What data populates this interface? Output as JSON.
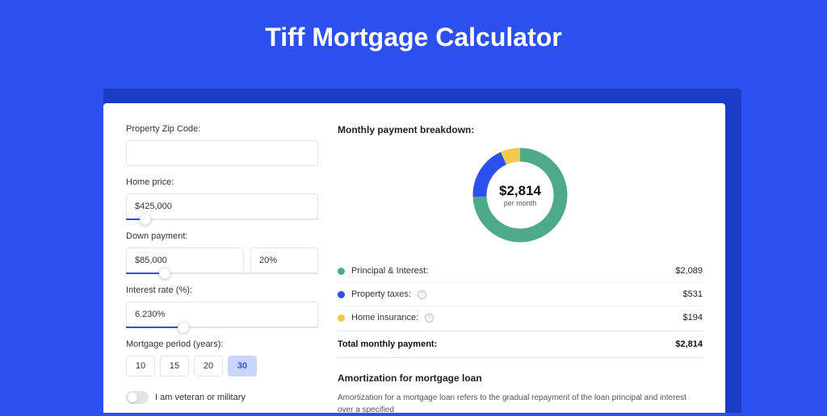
{
  "page": {
    "title": "Tiff Mortgage Calculator",
    "bg_color": "#2b50ed",
    "card_bg": "#ffffff",
    "shadow_color": "#1a3cc7"
  },
  "form": {
    "zip": {
      "label": "Property Zip Code:",
      "value": ""
    },
    "home_price": {
      "label": "Home price:",
      "value": "$425,000",
      "slider_pct": 10
    },
    "down_payment": {
      "label": "Down payment:",
      "amount": "$85,000",
      "percent": "20%",
      "slider_pct": 20
    },
    "interest": {
      "label": "Interest rate (%):",
      "value": "6.230%",
      "slider_pct": 30
    },
    "period": {
      "label": "Mortgage period (years):",
      "options": [
        "10",
        "15",
        "20",
        "30"
      ],
      "selected": "30"
    },
    "veteran": {
      "label": "I am veteran or military",
      "checked": false
    }
  },
  "breakdown": {
    "title": "Monthly payment breakdown:",
    "donut": {
      "amount": "$2,814",
      "sub": "per month",
      "segments": [
        {
          "key": "pi",
          "color": "#4faa88",
          "value": 2089
        },
        {
          "key": "tax",
          "color": "#2b50ed",
          "value": 531
        },
        {
          "key": "ins",
          "color": "#f2c94c",
          "value": 194
        }
      ],
      "track_color": "#eef0f5",
      "stroke_width": 17
    },
    "rows": [
      {
        "label": "Principal & Interest:",
        "value": "$2,089",
        "color": "#4faa88",
        "help": false
      },
      {
        "label": "Property taxes:",
        "value": "$531",
        "color": "#2b50ed",
        "help": true
      },
      {
        "label": "Home insurance:",
        "value": "$194",
        "color": "#f2c94c",
        "help": true
      }
    ],
    "total": {
      "label": "Total monthly payment:",
      "value": "$2,814"
    }
  },
  "amortization": {
    "title": "Amortization for mortgage loan",
    "text": "Amortization for a mortgage loan refers to the gradual repayment of the loan principal and interest over a specified"
  }
}
